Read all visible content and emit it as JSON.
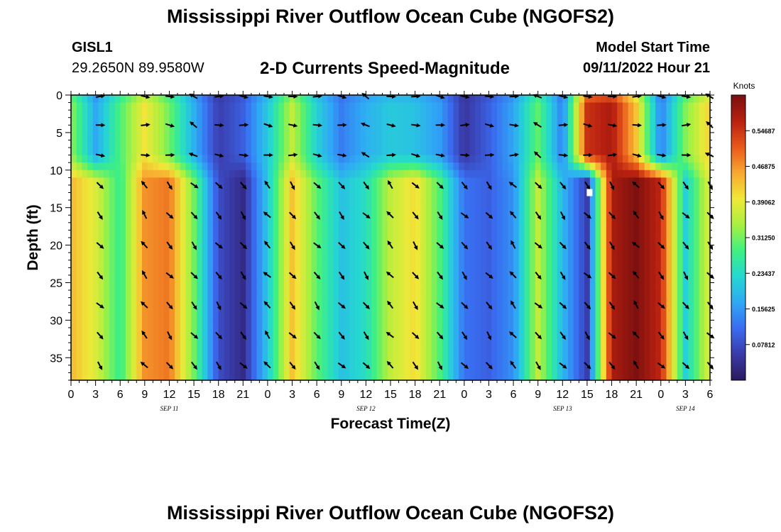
{
  "page": {
    "title": "Mississippi River Outflow Ocean Cube (NGOFS2)",
    "title_repeat": "Mississippi River Outflow Ocean Cube (NGOFS2)",
    "station_id": "GISL1",
    "station_coords": "29.2650N  89.9580W",
    "subtitle": "2-D Currents Speed-Magnitude",
    "model_start_label": "Model Start Time",
    "model_start_value": "09/11/2022 Hour 21"
  },
  "chart_data": {
    "type": "heatmap",
    "title": "2-D Currents Speed-Magnitude",
    "xlabel": "Forecast Time(Z)",
    "ylabel": "Depth (ft)",
    "x_hours_from_sep11_00z": [
      0,
      78
    ],
    "y_depth_ft": [
      0,
      38
    ],
    "x_tick_labels": [
      "0",
      "3",
      "6",
      "9",
      "12",
      "15",
      "18",
      "21",
      "0",
      "3",
      "6",
      "9",
      "12",
      "15",
      "18",
      "21",
      "0",
      "3",
      "6",
      "9",
      "12",
      "15",
      "18",
      "21",
      "0",
      "3",
      "6"
    ],
    "y_ticks": [
      0,
      5,
      10,
      15,
      20,
      25,
      30,
      35
    ],
    "date_labels": [
      {
        "hour": 12,
        "text": "SEP 11"
      },
      {
        "hour": 36,
        "text": "SEP 12"
      },
      {
        "hour": 60,
        "text": "SEP 13"
      },
      {
        "hour": 75,
        "text": "SEP 14"
      }
    ],
    "colorbar": {
      "title": "Knots",
      "range": [
        0,
        0.625
      ],
      "tick_labels": [
        "0.54687",
        "0.46875",
        "0.39062",
        "0.31250",
        "0.23437",
        "0.15625",
        "0.07812"
      ],
      "tick_values": [
        0.54687,
        0.46875,
        0.39062,
        0.3125,
        0.23437,
        0.15625,
        0.07812
      ],
      "colors": [
        "#2b1a5e",
        "#3a3aa8",
        "#3a6cf0",
        "#2fa8f5",
        "#25d8d0",
        "#40f080",
        "#a8f040",
        "#f0e838",
        "#f8a830",
        "#e8581a",
        "#b82010",
        "#781010"
      ]
    },
    "profile_hours": [
      0,
      3,
      6,
      9,
      12,
      15,
      18,
      21,
      24,
      27,
      30,
      33,
      36,
      39,
      42,
      45,
      48,
      51,
      54,
      57,
      60,
      63,
      66,
      69,
      72,
      75,
      78
    ],
    "surface_layer_speed_0_to_9ft": [
      0.33,
      0.17,
      0.29,
      0.4,
      0.31,
      0.18,
      0.06,
      0.1,
      0.21,
      0.36,
      0.22,
      0.13,
      0.18,
      0.21,
      0.2,
      0.16,
      0.05,
      0.1,
      0.17,
      0.3,
      0.13,
      0.55,
      0.58,
      0.43,
      0.13,
      0.32,
      0.42
    ],
    "lower_layer_speed_10_to_38ft": [
      0.44,
      0.38,
      0.27,
      0.47,
      0.49,
      0.31,
      0.08,
      0.03,
      0.21,
      0.43,
      0.3,
      0.2,
      0.24,
      0.36,
      0.41,
      0.29,
      0.12,
      0.1,
      0.15,
      0.36,
      0.19,
      0.06,
      0.58,
      0.62,
      0.56,
      0.22,
      0.39
    ],
    "arrow_hours": [
      3.5,
      9,
      12,
      15,
      18,
      21,
      24,
      27,
      30,
      33,
      36,
      39,
      42,
      45,
      48,
      51,
      54,
      57,
      60,
      63,
      66,
      69,
      72,
      75,
      78
    ],
    "arrow_depths_ft": [
      0,
      4,
      8,
      12,
      16,
      20,
      24,
      28,
      32,
      36
    ],
    "max_marker": {
      "hour": 63.3,
      "depth_ft": 13
    }
  }
}
